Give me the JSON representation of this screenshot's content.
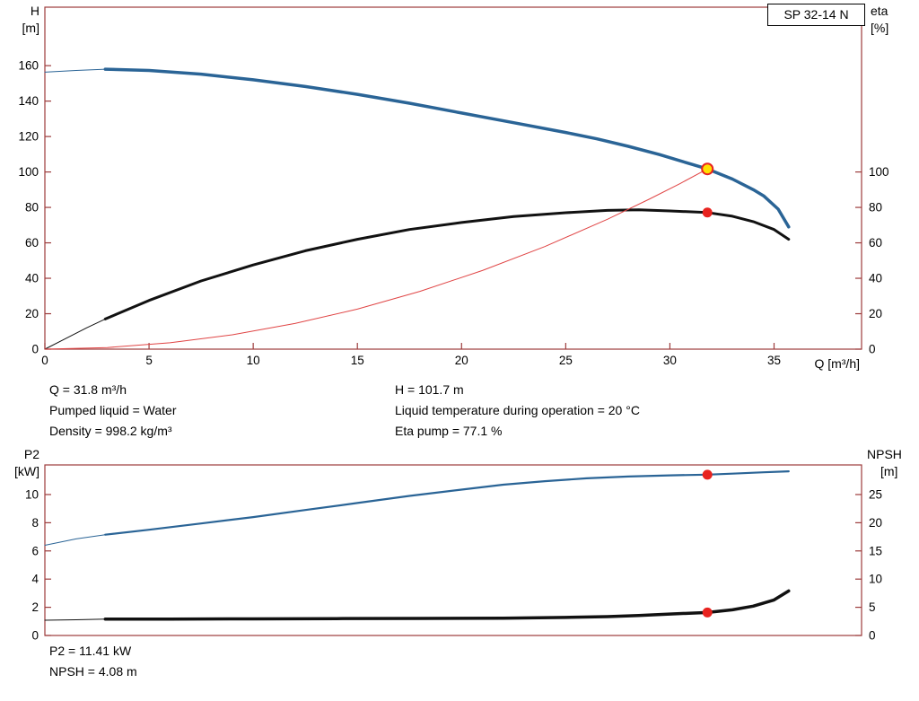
{
  "info_top": {
    "left": [
      "Q = 31.8 m³/h",
      "Pumped liquid = Water",
      "Density = 998.2 kg/m³"
    ],
    "right": [
      "H = 101.7 m",
      "Liquid temperature during operation = 20 °C",
      "Eta pump = 77.1 %"
    ]
  },
  "info_bottom": [
    "P2 = 11.41 kW",
    "NPSH = 4.08 m"
  ],
  "colors": {
    "curve_blue": "#2a6496",
    "curve_black": "#111111",
    "curve_red": "#e04545",
    "axis_red": "#9c3b3b",
    "marker_red": "#e8231f",
    "marker_yellow": "#ffdf00"
  },
  "chart_data": [
    {
      "type": "line",
      "badge": "SP 32-14 N",
      "x_axis": {
        "label": "Q [m³/h]",
        "min": 0,
        "max": 39.2,
        "ticks": [
          0,
          5,
          10,
          15,
          20,
          25,
          30,
          35
        ]
      },
      "left_axis": {
        "label": "H",
        "unit": "[m]",
        "min": 0,
        "max": 193,
        "ticks": [
          0,
          20,
          40,
          60,
          80,
          100,
          120,
          140,
          160
        ]
      },
      "right_axis": {
        "label": "eta",
        "unit": "[%]",
        "min": 0,
        "max": 193,
        "ticks": [
          0,
          20,
          40,
          60,
          80,
          100
        ]
      },
      "series": [
        {
          "name": "head-curve-lead",
          "axis": "left",
          "color": "curve_blue",
          "width": 1,
          "points": [
            [
              0,
              156.3
            ],
            [
              1.5,
              157.3
            ],
            [
              2.9,
              158
            ]
          ]
        },
        {
          "name": "head-curve",
          "axis": "left",
          "color": "curve_blue",
          "width": 3.5,
          "points": [
            [
              2.9,
              158
            ],
            [
              5,
              157.3
            ],
            [
              7.5,
              155.2
            ],
            [
              10,
              152
            ],
            [
              12.5,
              148.2
            ],
            [
              15,
              143.8
            ],
            [
              17.5,
              138.8
            ],
            [
              20,
              133.3
            ],
            [
              22.5,
              127.8
            ],
            [
              25,
              122.3
            ],
            [
              26.5,
              118.7
            ],
            [
              28,
              114.5
            ],
            [
              29.5,
              109.8
            ],
            [
              30.8,
              105.2
            ],
            [
              31.8,
              101.7
            ],
            [
              33,
              96
            ],
            [
              34,
              90
            ],
            [
              34.5,
              86.5
            ],
            [
              35.2,
              79
            ],
            [
              35.7,
              69
            ]
          ]
        },
        {
          "name": "efficiency-curve-lead",
          "axis": "right",
          "color": "curve_black",
          "width": 1,
          "points": [
            [
              0,
              0
            ],
            [
              1,
              6
            ],
            [
              2,
              12
            ],
            [
              2.9,
              17
            ]
          ]
        },
        {
          "name": "efficiency-curve",
          "axis": "right",
          "color": "curve_black",
          "width": 3,
          "points": [
            [
              2.9,
              17
            ],
            [
              5,
              27.5
            ],
            [
              7.5,
              38.5
            ],
            [
              10,
              47.5
            ],
            [
              12.5,
              55.5
            ],
            [
              15,
              62
            ],
            [
              17.5,
              67.5
            ],
            [
              20,
              71.5
            ],
            [
              22.5,
              74.8
            ],
            [
              25,
              77
            ],
            [
              27,
              78.3
            ],
            [
              28.5,
              78.6
            ],
            [
              30,
              78
            ],
            [
              31.8,
              77.1
            ],
            [
              33,
              75
            ],
            [
              34,
              72
            ],
            [
              35,
              67.5
            ],
            [
              35.7,
              62
            ]
          ]
        },
        {
          "name": "system-curve",
          "axis": "left",
          "color": "curve_red",
          "width": 1,
          "points": [
            [
              0,
              0
            ],
            [
              3,
              0.9
            ],
            [
              6,
              3.6
            ],
            [
              9,
              8.1
            ],
            [
              12,
              14.5
            ],
            [
              15,
              22.6
            ],
            [
              18,
              32.6
            ],
            [
              21,
              44.4
            ],
            [
              24,
              57.9
            ],
            [
              27,
              73.3
            ],
            [
              29,
              84.6
            ],
            [
              30.5,
              93.5
            ],
            [
              31.8,
              101.7
            ]
          ]
        }
      ],
      "markers": [
        {
          "name": "duty-point-eta",
          "x": 31.8,
          "value": 77.1,
          "axis": "right",
          "style": "red"
        },
        {
          "name": "duty-point-head",
          "x": 31.8,
          "value": 101.7,
          "axis": "left",
          "style": "yellow"
        }
      ]
    },
    {
      "type": "line",
      "x_axis": {
        "min": 0,
        "max": 39.2,
        "ticks": []
      },
      "left_axis": {
        "label": "P2",
        "unit": "[kW]",
        "min": 0,
        "max": 12.1,
        "ticks": [
          0,
          2,
          4,
          6,
          8,
          10
        ]
      },
      "right_axis": {
        "label": "NPSH",
        "unit": "[m]",
        "min": 0,
        "max": 30.25,
        "ticks": [
          0,
          5,
          10,
          15,
          20,
          25
        ]
      },
      "series": [
        {
          "name": "power-curve-lead",
          "axis": "left",
          "color": "curve_blue",
          "width": 1,
          "points": [
            [
              0,
              6.4
            ],
            [
              1.5,
              6.85
            ],
            [
              2.9,
              7.15
            ]
          ]
        },
        {
          "name": "power-curve",
          "axis": "left",
          "color": "curve_blue",
          "width": 2.2,
          "points": [
            [
              2.9,
              7.15
            ],
            [
              5,
              7.5
            ],
            [
              7.5,
              7.95
            ],
            [
              10,
              8.4
            ],
            [
              12.5,
              8.9
            ],
            [
              15,
              9.4
            ],
            [
              17.5,
              9.9
            ],
            [
              20,
              10.35
            ],
            [
              22,
              10.7
            ],
            [
              24,
              10.95
            ],
            [
              26,
              11.15
            ],
            [
              28,
              11.28
            ],
            [
              30,
              11.36
            ],
            [
              31.8,
              11.41
            ],
            [
              33,
              11.48
            ],
            [
              34.5,
              11.58
            ],
            [
              35.7,
              11.65
            ]
          ]
        },
        {
          "name": "npsh-curve-lead",
          "axis": "right",
          "color": "curve_black",
          "width": 1,
          "points": [
            [
              0,
              2.7
            ],
            [
              1.5,
              2.78
            ],
            [
              2.9,
              2.9
            ]
          ]
        },
        {
          "name": "npsh-curve",
          "axis": "right",
          "color": "curve_black",
          "width": 3.5,
          "points": [
            [
              2.9,
              2.9
            ],
            [
              6,
              2.92
            ],
            [
              10,
              2.95
            ],
            [
              14,
              3.0
            ],
            [
              18,
              3.02
            ],
            [
              22,
              3.08
            ],
            [
              25,
              3.2
            ],
            [
              27,
              3.35
            ],
            [
              28.5,
              3.55
            ],
            [
              30,
              3.8
            ],
            [
              31.8,
              4.08
            ],
            [
              33,
              4.55
            ],
            [
              34,
              5.2
            ],
            [
              35,
              6.3
            ],
            [
              35.7,
              7.9
            ]
          ]
        }
      ],
      "markers": [
        {
          "name": "duty-point-p2",
          "x": 31.8,
          "value": 11.41,
          "axis": "left",
          "style": "red"
        },
        {
          "name": "duty-point-npsh",
          "x": 31.8,
          "value": 4.08,
          "axis": "right",
          "style": "red"
        }
      ]
    }
  ]
}
